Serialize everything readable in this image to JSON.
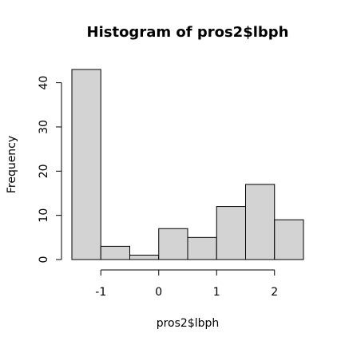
{
  "chart_data": {
    "type": "bar",
    "title": "Histogram of pros2$lbph",
    "xlabel": "pros2$lbph",
    "ylabel": "Frequency",
    "bins": [
      {
        "x0": -1.5,
        "x1": -1.0,
        "count": 43
      },
      {
        "x0": -1.0,
        "x1": -0.5,
        "count": 3
      },
      {
        "x0": -0.5,
        "x1": 0.0,
        "count": 1
      },
      {
        "x0": 0.0,
        "x1": 0.5,
        "count": 7
      },
      {
        "x0": 0.5,
        "x1": 1.0,
        "count": 5
      },
      {
        "x0": 1.0,
        "x1": 1.5,
        "count": 12
      },
      {
        "x0": 1.5,
        "x1": 2.0,
        "count": 17
      },
      {
        "x0": 2.0,
        "x1": 2.5,
        "count": 9
      }
    ],
    "xticks": [
      -1,
      0,
      1,
      2
    ],
    "yticks": [
      0,
      10,
      20,
      30,
      40
    ],
    "xlim": [
      -1.5,
      2.5
    ],
    "ylim": [
      0,
      43
    ],
    "grid": false,
    "colors": {
      "bar_fill": "#d3d3d3",
      "bar_stroke": "#000000"
    }
  }
}
